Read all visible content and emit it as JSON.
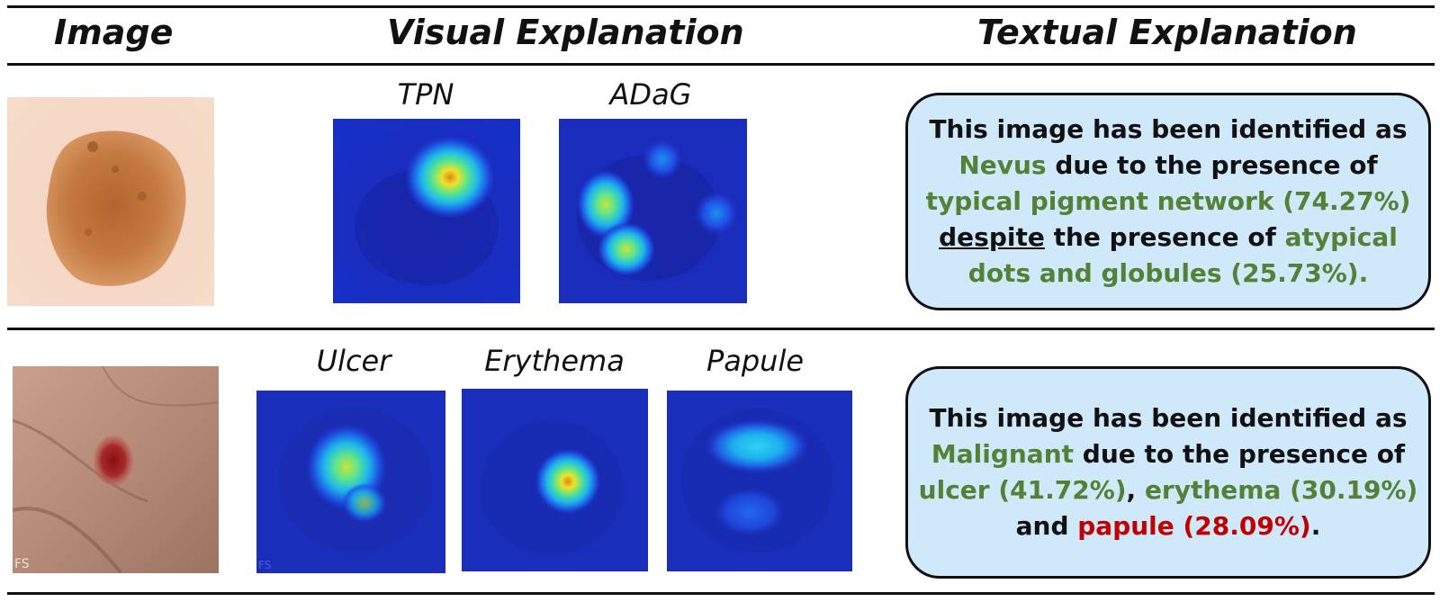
{
  "headers": {
    "image": "Image",
    "visual": "Visual Explanation",
    "textual": "Textual Explanation"
  },
  "row1": {
    "photo": "nevus-dermoscopy-photo",
    "heatmaps": [
      {
        "label": "TPN"
      },
      {
        "label": "ADaG"
      }
    ],
    "text": {
      "l1": "This image has been identified as",
      "class": "Nevus",
      "l2_rest": " due to the presence of",
      "f1": "typical pigment network (74.27%)",
      "despite": "despite",
      "l4_rest": " the presence of ",
      "f2a": "atypical",
      "f2b": "dots and globules (25.73%)",
      "end": "."
    }
  },
  "row2": {
    "photo": "malignant-lesion-photo",
    "heatmaps": [
      {
        "label": "Ulcer"
      },
      {
        "label": "Erythema"
      },
      {
        "label": "Papule"
      }
    ],
    "text": {
      "l1": "This image has been identified as",
      "class": "Malignant",
      "l2_rest": " due to the presence of",
      "f1": "ulcer (41.72%)",
      "comma": ", ",
      "f2": "erythema (30.19%)",
      "and": "and ",
      "f3": "papule (28.09%)",
      "end": "."
    }
  },
  "colors": {
    "feature_green": "#538135",
    "feature_red": "#c00000",
    "box_fill": "#cfe9fb"
  }
}
